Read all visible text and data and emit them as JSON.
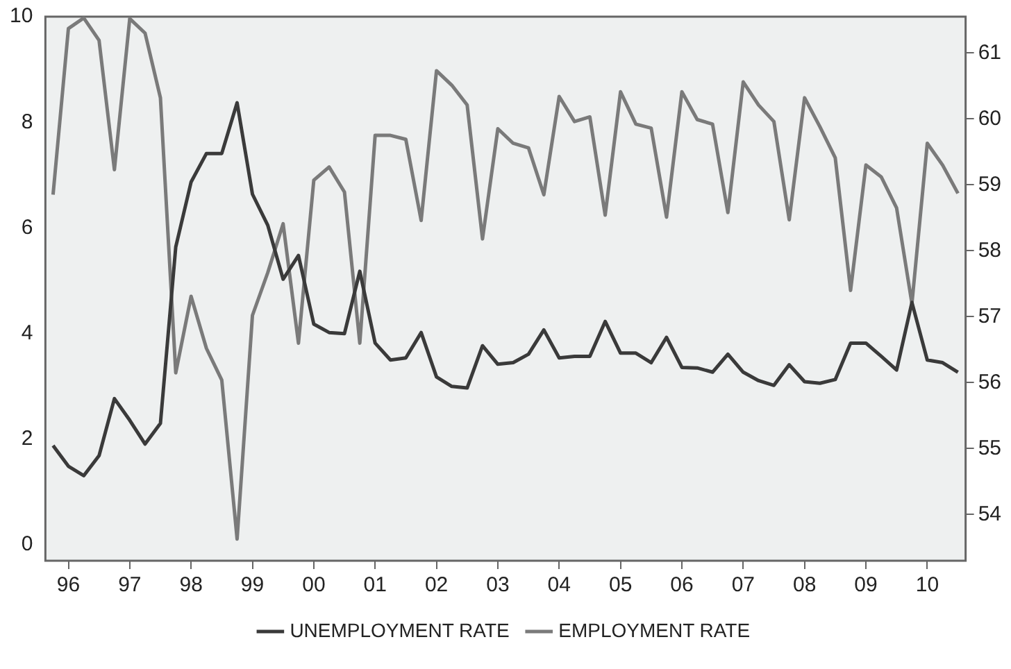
{
  "chart_data": {
    "type": "line",
    "categories": [
      null,
      "96",
      null,
      null,
      null,
      "97",
      null,
      null,
      null,
      "98",
      null,
      null,
      null,
      "99",
      null,
      null,
      null,
      "00",
      null,
      null,
      null,
      "01",
      null,
      null,
      null,
      "02",
      null,
      null,
      null,
      "03",
      null,
      null,
      null,
      "04",
      null,
      null,
      null,
      "05",
      null,
      null,
      null,
      "06",
      null,
      null,
      null,
      "07",
      null,
      null,
      null,
      "08",
      null,
      null,
      null,
      "09",
      null,
      null,
      null,
      "10",
      null,
      null
    ],
    "series": [
      {
        "name": "UNEMPLOYMENT RATE",
        "color": "#3a3a3a",
        "values": [
          1.88,
          1.49,
          1.31,
          1.69,
          2.77,
          2.36,
          1.91,
          2.3,
          5.64,
          6.87,
          7.41,
          7.41,
          8.37,
          6.64,
          6.05,
          5.03,
          5.48,
          4.18,
          4.02,
          4.0,
          5.18,
          3.82,
          3.5,
          3.54,
          4.02,
          3.18,
          3.0,
          2.97,
          3.77,
          3.42,
          3.45,
          3.61,
          4.07,
          3.54,
          3.57,
          3.57,
          4.23,
          3.63,
          3.63,
          3.45,
          3.93,
          3.36,
          3.35,
          3.27,
          3.61,
          3.27,
          3.11,
          3.02,
          3.41,
          3.09,
          3.06,
          3.13,
          3.82,
          3.82,
          3.57,
          3.31,
          4.59,
          3.5,
          3.45,
          3.27
        ]
      },
      {
        "name": "EMPLOYMENT RATE",
        "color": "#7a7a7a",
        "axis": "y2",
        "values": [
          58.85,
          61.37,
          61.53,
          61.19,
          59.23,
          61.52,
          61.3,
          60.32,
          56.15,
          57.31,
          56.52,
          56.04,
          53.63,
          57.02,
          57.67,
          58.41,
          56.6,
          59.07,
          59.27,
          58.89,
          56.6,
          59.75,
          59.75,
          59.69,
          58.46,
          60.73,
          60.51,
          60.21,
          58.18,
          59.85,
          59.63,
          59.56,
          58.85,
          60.34,
          59.96,
          60.03,
          58.54,
          60.41,
          59.92,
          59.86,
          58.51,
          60.41,
          59.99,
          59.92,
          58.58,
          60.56,
          60.21,
          59.96,
          58.47,
          60.32,
          59.88,
          59.41,
          57.4,
          59.3,
          59.12,
          58.65,
          57.2,
          59.63,
          59.3,
          58.87
        ]
      }
    ],
    "ylim": [
      -0.3,
      10
    ],
    "yticks": [
      0,
      2,
      4,
      6,
      8,
      10
    ],
    "y2lim": [
      53.3,
      61.55
    ],
    "y2ticks": [
      54,
      55,
      56,
      57,
      58,
      59,
      60,
      61
    ],
    "grid": false,
    "legend": "bottom",
    "marker": "none",
    "line_style": "solid"
  }
}
